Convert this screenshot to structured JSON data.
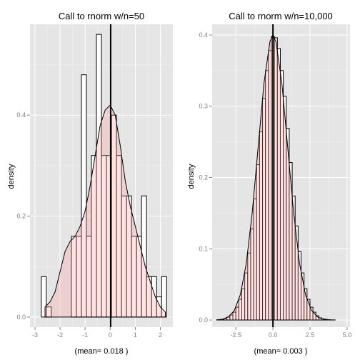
{
  "chart_data": [
    {
      "type": "bar",
      "subtype": "histogram-with-density",
      "title": "Call to rnorm w/n=50",
      "xlabel": "(mean= 0.018 )",
      "ylabel": "density",
      "xlim": [
        -3.2,
        2.5
      ],
      "ylim": [
        -0.02,
        0.58
      ],
      "x_ticks": [
        -3,
        -2,
        -1,
        0,
        1,
        2
      ],
      "y_ticks": [
        0.0,
        0.2,
        0.4
      ],
      "y_tick_labels": [
        "0.0",
        "0.2",
        "0.4"
      ],
      "mean": 0.018,
      "bins": [
        {
          "x0": -2.75,
          "x1": -2.55,
          "density": 0.08
        },
        {
          "x0": -2.55,
          "x1": -2.35,
          "density": 0.02
        },
        {
          "x0": -2.35,
          "x1": -2.15,
          "density": 0.0
        },
        {
          "x0": -2.15,
          "x1": -1.95,
          "density": 0.0
        },
        {
          "x0": -1.95,
          "x1": -1.75,
          "density": 0.0
        },
        {
          "x0": -1.75,
          "x1": -1.55,
          "density": 0.0
        },
        {
          "x0": -1.55,
          "x1": -1.35,
          "density": 0.16
        },
        {
          "x0": -1.35,
          "x1": -1.15,
          "density": 0.16
        },
        {
          "x0": -1.15,
          "x1": -0.95,
          "density": 0.48
        },
        {
          "x0": -0.95,
          "x1": -0.75,
          "density": 0.16
        },
        {
          "x0": -0.75,
          "x1": -0.55,
          "density": 0.32
        },
        {
          "x0": -0.55,
          "x1": -0.35,
          "density": 0.56
        },
        {
          "x0": -0.35,
          "x1": -0.15,
          "density": 0.32
        },
        {
          "x0": -0.15,
          "x1": 0.05,
          "density": 0.32
        },
        {
          "x0": 0.05,
          "x1": 0.25,
          "density": 0.4
        },
        {
          "x0": 0.25,
          "x1": 0.45,
          "density": 0.32
        },
        {
          "x0": 0.45,
          "x1": 0.65,
          "density": 0.24
        },
        {
          "x0": 0.65,
          "x1": 0.85,
          "density": 0.24
        },
        {
          "x0": 0.85,
          "x1": 1.05,
          "density": 0.16
        },
        {
          "x0": 1.05,
          "x1": 1.25,
          "density": 0.16
        },
        {
          "x0": 1.25,
          "x1": 1.45,
          "density": 0.24
        },
        {
          "x0": 1.45,
          "x1": 1.65,
          "density": 0.08
        },
        {
          "x0": 1.65,
          "x1": 1.85,
          "density": 0.08
        },
        {
          "x0": 1.85,
          "x1": 2.05,
          "density": 0.04
        },
        {
          "x0": 2.05,
          "x1": 2.25,
          "density": 0.08
        }
      ],
      "density_curve": {
        "x": [
          -2.6,
          -2.4,
          -2.2,
          -2.0,
          -1.8,
          -1.6,
          -1.4,
          -1.2,
          -1.0,
          -0.8,
          -0.6,
          -0.4,
          -0.2,
          0.0,
          0.2,
          0.4,
          0.6,
          0.8,
          1.0,
          1.2,
          1.4,
          1.6,
          1.8,
          2.0,
          2.2
        ],
        "y": [
          0.02,
          0.03,
          0.05,
          0.09,
          0.13,
          0.15,
          0.16,
          0.18,
          0.21,
          0.26,
          0.32,
          0.38,
          0.41,
          0.42,
          0.4,
          0.34,
          0.27,
          0.22,
          0.18,
          0.14,
          0.1,
          0.07,
          0.04,
          0.02,
          0.01
        ]
      },
      "fill_color": "#ff9999",
      "panel_color": "#e5e5e5"
    },
    {
      "type": "bar",
      "subtype": "histogram-with-density",
      "title": "Call to rnorm w/n=10,000",
      "xlabel": "(mean= 0.003 )",
      "ylabel": "density",
      "xlim": [
        -4.1,
        5.2
      ],
      "ylim": [
        -0.01,
        0.415
      ],
      "x_ticks": [
        -2.5,
        0.0,
        2.5,
        5.0
      ],
      "x_tick_labels": [
        "-2.5",
        "0.0",
        "2.5",
        "5.0"
      ],
      "y_ticks": [
        0.0,
        0.1,
        0.2,
        0.3,
        0.4
      ],
      "y_tick_labels": [
        "0.0",
        "0.1",
        "0.2",
        "0.3",
        "0.4"
      ],
      "mean": 0.003,
      "bin_width": 0.2,
      "bins_x_start": [
        -3.7,
        -3.5,
        -3.3,
        -3.1,
        -2.9,
        -2.7,
        -2.5,
        -2.3,
        -2.1,
        -1.9,
        -1.7,
        -1.5,
        -1.3,
        -1.1,
        -0.9,
        -0.7,
        -0.5,
        -0.3,
        -0.1,
        0.1,
        0.3,
        0.5,
        0.7,
        0.9,
        1.1,
        1.3,
        1.5,
        1.7,
        1.9,
        2.1,
        2.3,
        2.5,
        2.7,
        2.9,
        3.1,
        3.3,
        3.5,
        3.7
      ],
      "bins_density": [
        0.0005,
        0.001,
        0.002,
        0.004,
        0.007,
        0.011,
        0.018,
        0.029,
        0.044,
        0.066,
        0.094,
        0.128,
        0.17,
        0.218,
        0.264,
        0.311,
        0.35,
        0.378,
        0.398,
        0.396,
        0.381,
        0.35,
        0.314,
        0.269,
        0.221,
        0.174,
        0.132,
        0.096,
        0.066,
        0.044,
        0.029,
        0.018,
        0.011,
        0.006,
        0.003,
        0.0015,
        0.0008,
        0.0004
      ],
      "density_curve": {
        "x": [
          -3.8,
          -3.4,
          -3.0,
          -2.6,
          -2.2,
          -1.8,
          -1.4,
          -1.0,
          -0.6,
          -0.2,
          0.0,
          0.2,
          0.6,
          1.0,
          1.4,
          1.8,
          2.2,
          2.6,
          3.0,
          3.4,
          3.8,
          4.2
        ],
        "y": [
          0.0003,
          0.0012,
          0.0044,
          0.0136,
          0.0355,
          0.079,
          0.15,
          0.242,
          0.333,
          0.391,
          0.399,
          0.391,
          0.333,
          0.242,
          0.15,
          0.079,
          0.0355,
          0.0136,
          0.0044,
          0.0012,
          0.0003,
          0.0001
        ]
      },
      "fill_color": "#ff9999",
      "panel_color": "#e5e5e5"
    }
  ]
}
